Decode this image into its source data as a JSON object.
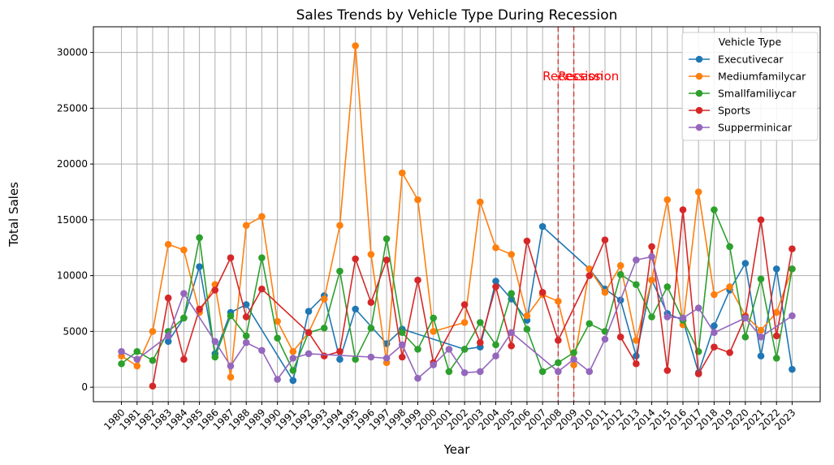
{
  "chart_data": {
    "type": "line",
    "title": "Sales Trends by Vehicle Type During Recession",
    "xlabel": "Year",
    "ylabel": "Total Sales",
    "ylim": [
      -1300,
      32300
    ],
    "yticks": [
      0,
      5000,
      10000,
      15000,
      20000,
      25000,
      30000
    ],
    "grid": true,
    "legend": {
      "title": "Vehicle Type",
      "placement": "top-right"
    },
    "x": [
      1980,
      1981,
      1982,
      1983,
      1984,
      1985,
      1986,
      1987,
      1988,
      1989,
      1990,
      1991,
      1992,
      1993,
      1994,
      1995,
      1996,
      1997,
      1998,
      1999,
      2000,
      2001,
      2002,
      2003,
      2004,
      2005,
      2006,
      2007,
      2008,
      2009,
      2010,
      2011,
      2012,
      2013,
      2014,
      2015,
      2016,
      2017,
      2018,
      2019,
      2020,
      2021,
      2022,
      2023
    ],
    "series": [
      {
        "name": "Executivecar",
        "color": "#1f77b4",
        "points": [
          [
            1983,
            4100
          ],
          [
            1984,
            6200
          ],
          [
            1985,
            10800
          ],
          [
            1986,
            3000
          ],
          [
            1987,
            6700
          ],
          [
            1988,
            7400
          ],
          [
            1991,
            600
          ],
          [
            1992,
            6800
          ],
          [
            1993,
            8200
          ],
          [
            1994,
            2500
          ],
          [
            1995,
            7000
          ],
          [
            1997,
            3900
          ],
          [
            1998,
            5200
          ],
          [
            2002,
            3400
          ],
          [
            2003,
            3600
          ],
          [
            2004,
            9500
          ],
          [
            2005,
            7900
          ],
          [
            2006,
            6000
          ],
          [
            2007,
            14400
          ],
          [
            2010,
            10600
          ],
          [
            2011,
            8800
          ],
          [
            2012,
            7800
          ],
          [
            2013,
            2800
          ],
          [
            2014,
            9600
          ],
          [
            2015,
            6600
          ],
          [
            2016,
            6000
          ],
          [
            2017,
            1300
          ],
          [
            2018,
            5500
          ],
          [
            2019,
            8700
          ],
          [
            2020,
            11100
          ],
          [
            2021,
            2800
          ],
          [
            2022,
            10600
          ],
          [
            2023,
            1600
          ]
        ]
      },
      {
        "name": "Mediumfamilycar",
        "color": "#ff7f0e",
        "points": [
          [
            1980,
            2800
          ],
          [
            1981,
            1900
          ],
          [
            1982,
            5000
          ],
          [
            1983,
            12800
          ],
          [
            1984,
            12300
          ],
          [
            1985,
            6700
          ],
          [
            1986,
            9200
          ],
          [
            1987,
            900
          ],
          [
            1988,
            14500
          ],
          [
            1989,
            15300
          ],
          [
            1990,
            5900
          ],
          [
            1991,
            3200
          ],
          [
            1992,
            4900
          ],
          [
            1993,
            7900
          ],
          [
            1994,
            14500
          ],
          [
            1995,
            30600
          ],
          [
            1996,
            11900
          ],
          [
            1997,
            2200
          ],
          [
            1998,
            19200
          ],
          [
            1999,
            16800
          ],
          [
            2000,
            5000
          ],
          [
            2002,
            5800
          ],
          [
            2003,
            16600
          ],
          [
            2004,
            12500
          ],
          [
            2005,
            11900
          ],
          [
            2006,
            6400
          ],
          [
            2007,
            8300
          ],
          [
            2008,
            7700
          ],
          [
            2009,
            2000
          ],
          [
            2010,
            10600
          ],
          [
            2011,
            8500
          ],
          [
            2012,
            10900
          ],
          [
            2013,
            4200
          ],
          [
            2014,
            9600
          ],
          [
            2015,
            16800
          ],
          [
            2016,
            5600
          ],
          [
            2017,
            17500
          ],
          [
            2018,
            8300
          ],
          [
            2019,
            9000
          ],
          [
            2020,
            6400
          ],
          [
            2021,
            5100
          ],
          [
            2022,
            6700
          ],
          [
            2023,
            10600
          ]
        ]
      },
      {
        "name": "Smallfamiliycar",
        "color": "#2ca02c",
        "points": [
          [
            1980,
            2100
          ],
          [
            1981,
            3200
          ],
          [
            1982,
            2400
          ],
          [
            1983,
            5000
          ],
          [
            1984,
            6200
          ],
          [
            1985,
            13400
          ],
          [
            1986,
            2700
          ],
          [
            1987,
            6400
          ],
          [
            1988,
            4600
          ],
          [
            1989,
            11600
          ],
          [
            1990,
            4400
          ],
          [
            1991,
            1500
          ],
          [
            1992,
            4900
          ],
          [
            1993,
            5300
          ],
          [
            1994,
            10400
          ],
          [
            1995,
            2500
          ],
          [
            1996,
            5300
          ],
          [
            1997,
            13300
          ],
          [
            1998,
            4900
          ],
          [
            1999,
            3400
          ],
          [
            2000,
            6200
          ],
          [
            2001,
            1400
          ],
          [
            2002,
            3400
          ],
          [
            2003,
            5800
          ],
          [
            2004,
            3800
          ],
          [
            2005,
            8400
          ],
          [
            2006,
            5200
          ],
          [
            2007,
            1400
          ],
          [
            2008,
            2200
          ],
          [
            2009,
            3100
          ],
          [
            2010,
            5700
          ],
          [
            2011,
            5000
          ],
          [
            2012,
            10100
          ],
          [
            2013,
            9200
          ],
          [
            2014,
            6300
          ],
          [
            2015,
            9000
          ],
          [
            2016,
            6000
          ],
          [
            2017,
            3200
          ],
          [
            2018,
            15900
          ],
          [
            2019,
            12600
          ],
          [
            2020,
            4500
          ],
          [
            2021,
            9700
          ],
          [
            2022,
            2600
          ],
          [
            2023,
            10600
          ]
        ]
      },
      {
        "name": "Sports",
        "color": "#d62728",
        "points": [
          [
            1982,
            100
          ],
          [
            1983,
            8000
          ],
          [
            1984,
            2500
          ],
          [
            1985,
            7000
          ],
          [
            1986,
            8700
          ],
          [
            1987,
            11600
          ],
          [
            1988,
            6300
          ],
          [
            1989,
            8800
          ],
          [
            1992,
            4900
          ],
          [
            1993,
            2800
          ],
          [
            1994,
            3200
          ],
          [
            1995,
            11500
          ],
          [
            1996,
            7600
          ],
          [
            1997,
            11400
          ],
          [
            1998,
            2700
          ],
          [
            1999,
            9600
          ],
          [
            2000,
            2200
          ],
          [
            2002,
            7400
          ],
          [
            2003,
            4000
          ],
          [
            2004,
            9000
          ],
          [
            2005,
            3700
          ],
          [
            2006,
            13100
          ],
          [
            2007,
            8500
          ],
          [
            2008,
            4200
          ],
          [
            2010,
            10000
          ],
          [
            2011,
            13200
          ],
          [
            2012,
            4500
          ],
          [
            2013,
            2100
          ],
          [
            2014,
            12600
          ],
          [
            2015,
            1500
          ],
          [
            2016,
            15900
          ],
          [
            2017,
            1200
          ],
          [
            2018,
            3600
          ],
          [
            2019,
            3100
          ],
          [
            2020,
            6300
          ],
          [
            2021,
            15000
          ],
          [
            2022,
            4600
          ],
          [
            2023,
            12400
          ]
        ]
      },
      {
        "name": "Supperminicar",
        "color": "#9467bd",
        "points": [
          [
            1980,
            3200
          ],
          [
            1981,
            2500
          ],
          [
            1983,
            4600
          ],
          [
            1984,
            8400
          ],
          [
            1986,
            4100
          ],
          [
            1987,
            1900
          ],
          [
            1988,
            4000
          ],
          [
            1989,
            3300
          ],
          [
            1990,
            700
          ],
          [
            1991,
            2600
          ],
          [
            1992,
            3000
          ],
          [
            1996,
            2700
          ],
          [
            1997,
            2600
          ],
          [
            1998,
            3800
          ],
          [
            1999,
            800
          ],
          [
            2000,
            2000
          ],
          [
            2001,
            3400
          ],
          [
            2002,
            1300
          ],
          [
            2003,
            1400
          ],
          [
            2004,
            2800
          ],
          [
            2005,
            4900
          ],
          [
            2008,
            1400
          ],
          [
            2009,
            2500
          ],
          [
            2010,
            1400
          ],
          [
            2011,
            4300
          ],
          [
            2013,
            11400
          ],
          [
            2014,
            11700
          ],
          [
            2015,
            6300
          ],
          [
            2016,
            6200
          ],
          [
            2017,
            7100
          ],
          [
            2018,
            4900
          ],
          [
            2020,
            6200
          ],
          [
            2021,
            4500
          ],
          [
            2023,
            6400
          ]
        ]
      }
    ],
    "recession_lines": [
      2008,
      2009
    ],
    "annotations": [
      {
        "text": "Recession",
        "x": 2007,
        "y": 27500,
        "color": "#ff0000"
      },
      {
        "text": "Recession",
        "x": 2008,
        "y": 27500,
        "color": "#ff0000"
      }
    ]
  }
}
